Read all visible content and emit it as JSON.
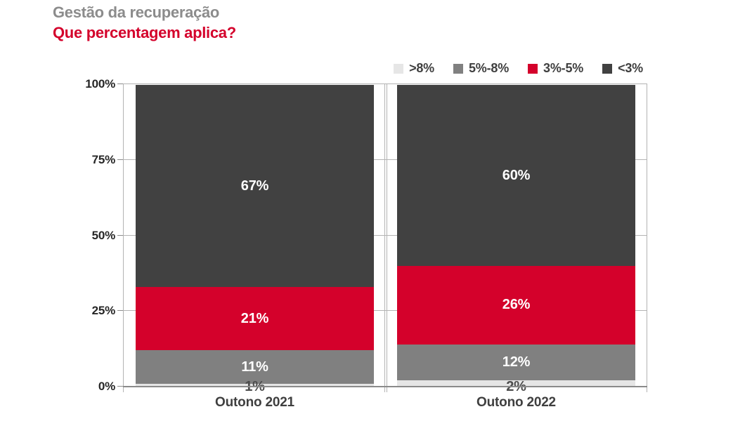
{
  "header": {
    "title": "Gestão da recuperação",
    "subtitle": "Que percentagem aplica?"
  },
  "colors": {
    "title_gray": "#8c8c8c",
    "accent_red": "#d4012b",
    "segment_dark": "#414141",
    "segment_gray": "#808080",
    "segment_light": "#e6e6e6",
    "grid_gray": "#b3b3b3",
    "baseline_gray": "#8a8a8a",
    "tick_text": "#262626",
    "label_text": "#3f3f3f",
    "outside_label_text": "#4d4d4d"
  },
  "chart_data": {
    "type": "bar",
    "stacked": true,
    "title": "Gestão da recuperação",
    "subtitle": "Que percentagem aplica?",
    "categories": [
      "Outono 2021",
      "Outono 2022"
    ],
    "series": [
      {
        "name": ">8%",
        "color": "#e6e6e6",
        "values": [
          1,
          2
        ],
        "label_color": "#4d4d4d",
        "label_inside": false
      },
      {
        "name": "5%-8%",
        "color": "#808080",
        "values": [
          11,
          12
        ],
        "label_color": "#ffffff",
        "label_inside": true
      },
      {
        "name": "3%-5%",
        "color": "#d4012b",
        "values": [
          21,
          26
        ],
        "label_color": "#ffffff",
        "label_inside": true
      },
      {
        "name": "<3%",
        "color": "#414141",
        "values": [
          67,
          60
        ],
        "label_color": "#ffffff",
        "label_inside": true
      }
    ],
    "data_labels": [
      [
        "1%",
        "11%",
        "21%",
        "67%"
      ],
      [
        "2%",
        "12%",
        "26%",
        "60%"
      ]
    ],
    "y_ticks": [
      "0%",
      "25%",
      "50%",
      "75%",
      "100%"
    ],
    "ylim": [
      0,
      100
    ],
    "grid": true,
    "legend_position": "top-right"
  }
}
